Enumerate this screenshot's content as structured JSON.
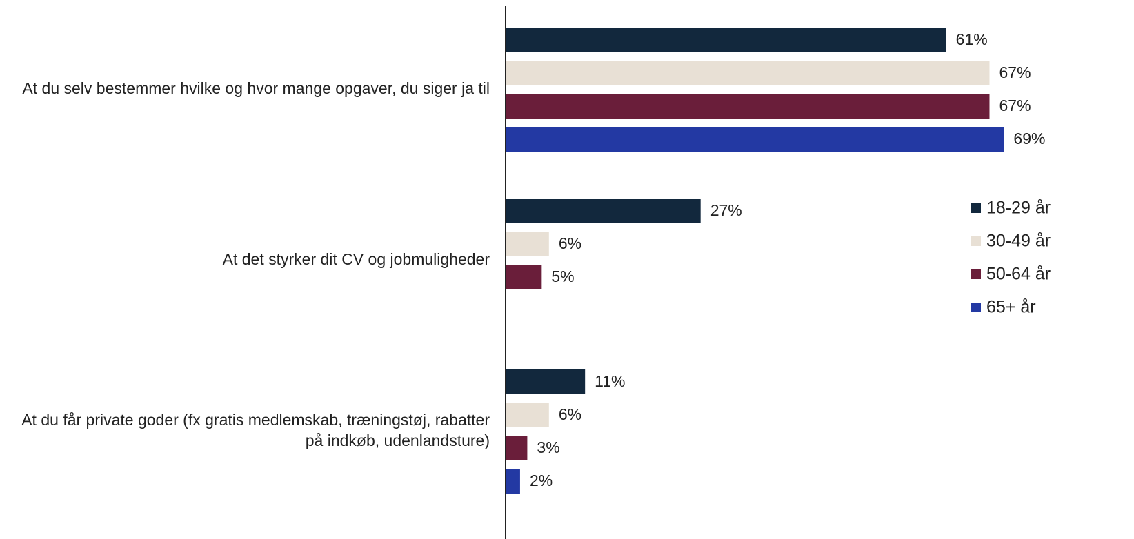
{
  "chart_data": {
    "type": "barh",
    "categories": [
      "At du selv bestemmer hvilke og hvor mange opgaver, du siger ja til",
      "At det styrker dit CV og jobmuligheder",
      "At du får private goder (fx gratis medlemskab, træningstøj, rabatter på indkøb, udenlandsture)"
    ],
    "series": [
      {
        "name": "18-29 år",
        "color": "#12283d",
        "values": [
          61,
          27,
          11
        ],
        "value_labels": [
          "61%",
          "27%",
          "11%"
        ]
      },
      {
        "name": "30-49 år",
        "color": "#e8e0d5",
        "values": [
          67,
          6,
          6
        ],
        "value_labels": [
          "67%",
          "6%",
          "6%"
        ]
      },
      {
        "name": "50-64 år",
        "color": "#6a1e3a",
        "values": [
          67,
          5,
          3
        ],
        "value_labels": [
          "67%",
          "5%",
          "3%"
        ]
      },
      {
        "name": "65+ år",
        "color": "#2339a3",
        "values": [
          69,
          null,
          2
        ],
        "value_labels": [
          "69%",
          null,
          "2%"
        ]
      }
    ],
    "xlim": [
      0,
      100
    ],
    "legend": "right"
  }
}
